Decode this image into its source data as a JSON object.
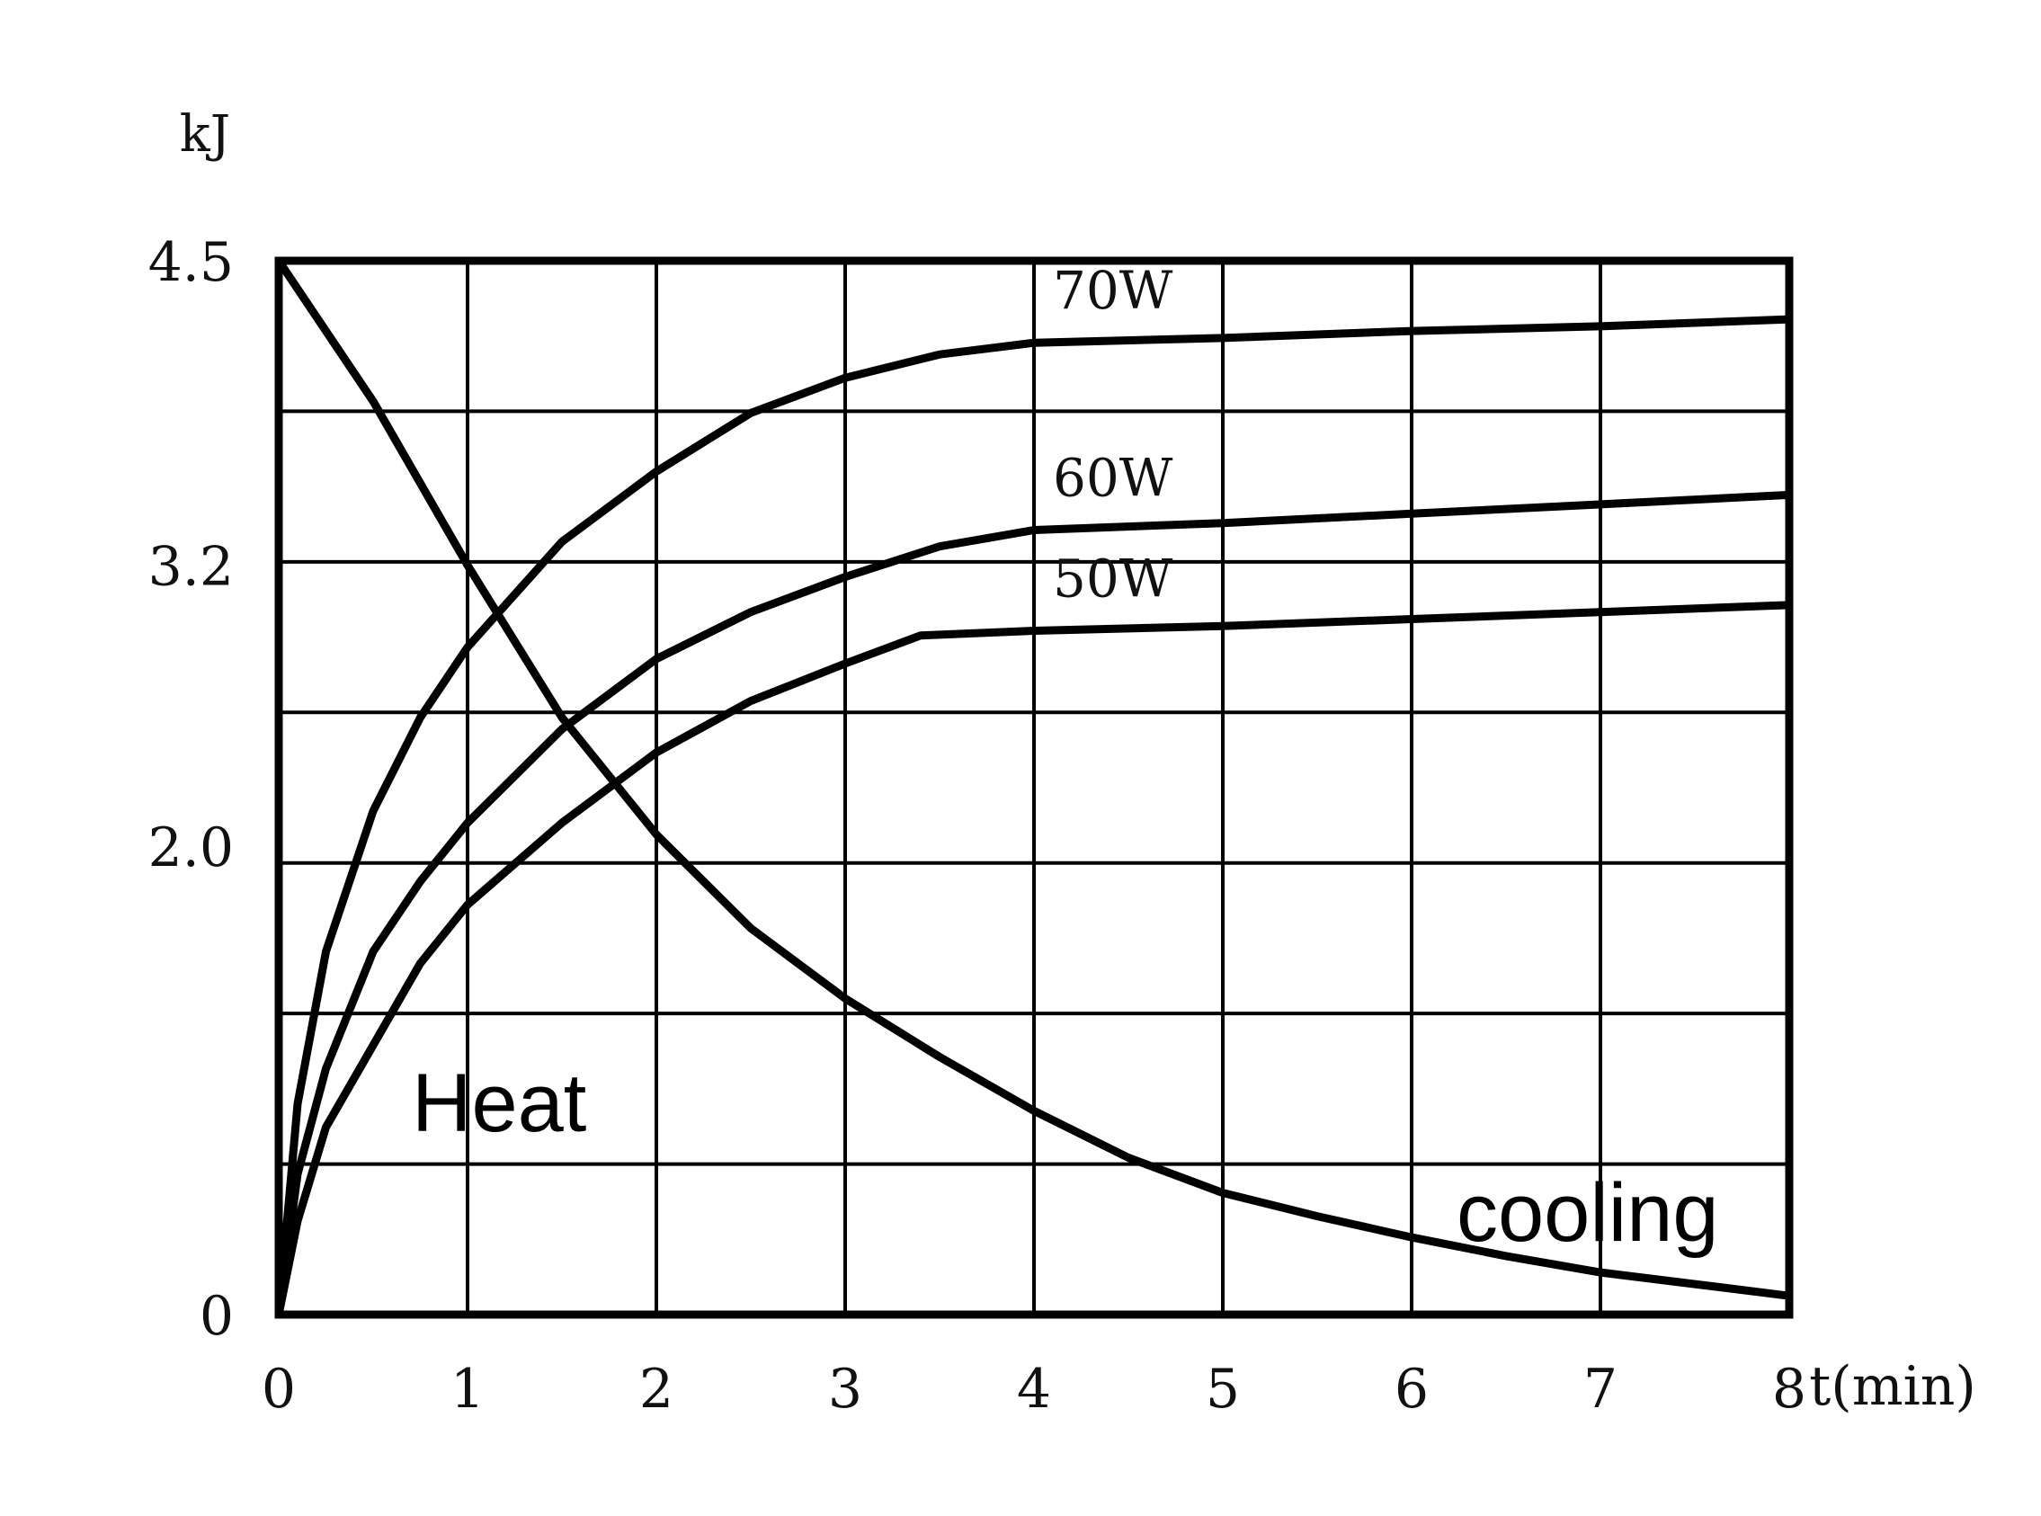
{
  "chart_data": {
    "type": "line",
    "ylabel": "kJ",
    "xlabel": "t(min)",
    "xlim": [
      0,
      8
    ],
    "ylim": [
      0,
      4.5
    ],
    "x_ticks": [
      "0",
      "1",
      "2",
      "3",
      "4",
      "5",
      "6",
      "7",
      "8"
    ],
    "y_ticks": [
      {
        "value": 4.5,
        "label": "4.5"
      },
      {
        "value": 3.2,
        "label": "3.2"
      },
      {
        "value": 2.0,
        "label": "2.0"
      },
      {
        "value": 0,
        "label": "0"
      }
    ],
    "grid": true,
    "series": [
      {
        "name": "70W",
        "x": [
          0,
          0.1,
          0.25,
          0.5,
          0.75,
          1,
          1.5,
          2,
          2.5,
          3,
          3.5,
          4,
          5,
          6,
          7,
          8
        ],
        "y": [
          0,
          0.9,
          1.55,
          2.15,
          2.55,
          2.85,
          3.3,
          3.6,
          3.85,
          4.0,
          4.1,
          4.15,
          4.17,
          4.2,
          4.22,
          4.25
        ]
      },
      {
        "name": "60W",
        "x": [
          0,
          0.1,
          0.25,
          0.5,
          0.75,
          1,
          1.5,
          2,
          2.5,
          3,
          3.5,
          4,
          5,
          6,
          7,
          8
        ],
        "y": [
          0,
          0.6,
          1.05,
          1.55,
          1.85,
          2.1,
          2.5,
          2.8,
          3.0,
          3.15,
          3.28,
          3.35,
          3.38,
          3.42,
          3.46,
          3.5
        ]
      },
      {
        "name": "50W",
        "x": [
          0,
          0.1,
          0.25,
          0.5,
          0.75,
          1,
          1.5,
          2,
          2.5,
          3,
          3.4,
          4,
          5,
          6,
          7,
          8
        ],
        "y": [
          0,
          0.4,
          0.8,
          1.15,
          1.5,
          1.75,
          2.1,
          2.4,
          2.62,
          2.78,
          2.9,
          2.92,
          2.94,
          2.97,
          3.0,
          3.03
        ]
      },
      {
        "name": "cooling",
        "x": [
          0,
          0.5,
          1,
          1.5,
          2,
          2.5,
          3,
          3.5,
          4,
          4.5,
          5,
          5.5,
          6,
          6.5,
          7,
          7.5,
          8
        ],
        "y": [
          4.5,
          3.9,
          3.2,
          2.55,
          2.05,
          1.65,
          1.35,
          1.1,
          0.87,
          0.67,
          0.52,
          0.42,
          0.33,
          0.25,
          0.18,
          0.13,
          0.08
        ]
      }
    ],
    "annotations": [
      "Heat",
      "cooling"
    ]
  }
}
